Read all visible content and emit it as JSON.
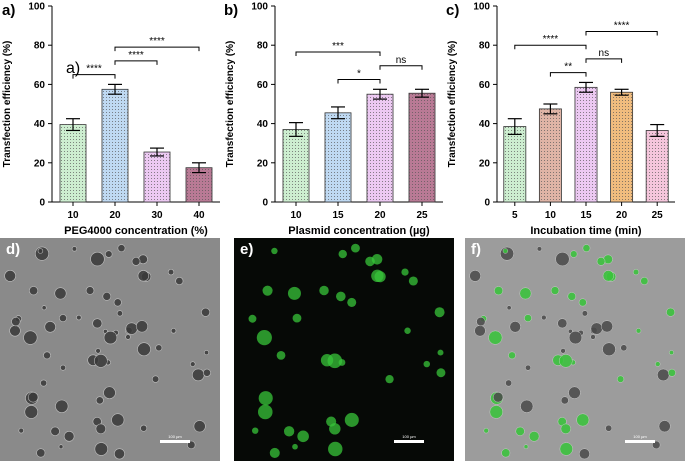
{
  "chart_data": [
    {
      "type": "bar",
      "panel_label": "a)",
      "inset_label": "a)",
      "title": "",
      "xlabel": "PEG4000 concentration (%)",
      "ylabel": "Transfection efficiency (%)",
      "ylim": [
        0,
        100
      ],
      "yticks": [
        "0",
        "20",
        "40",
        "60",
        "80",
        "100"
      ],
      "categories": [
        "10",
        "20",
        "30",
        "40"
      ],
      "values": [
        39.5,
        57.5,
        25.5,
        17.5
      ],
      "errors": [
        3,
        2.5,
        2,
        2.5
      ],
      "colors": [
        "#cdeed0",
        "#bfd9f2",
        "#ecc9f2",
        "#b97a95"
      ],
      "brackets": [
        {
          "from": 0,
          "to": 1,
          "label": "****"
        },
        {
          "from": 1,
          "to": 2,
          "label": "****"
        },
        {
          "from": 1,
          "to": 3,
          "label": "****"
        }
      ]
    },
    {
      "type": "bar",
      "panel_label": "b)",
      "title": "",
      "xlabel": "Plasmid concentration (µg)",
      "ylabel": "Transfection efficiency (%)",
      "ylim": [
        0,
        100
      ],
      "yticks": [
        "0",
        "20",
        "40",
        "60",
        "80",
        "100"
      ],
      "categories": [
        "10",
        "15",
        "20",
        "25"
      ],
      "values": [
        37,
        45.5,
        55,
        55.5
      ],
      "errors": [
        3.5,
        3,
        2.5,
        2
      ],
      "colors": [
        "#cdeed0",
        "#bfd9f2",
        "#ecc9f2",
        "#b97a95"
      ],
      "brackets": [
        {
          "from": 0,
          "to": 2,
          "label": "***"
        },
        {
          "from": 1,
          "to": 2,
          "label": "*"
        },
        {
          "from": 2,
          "to": 3,
          "label": "ns"
        }
      ]
    },
    {
      "type": "bar",
      "panel_label": "c)",
      "title": "",
      "xlabel": "Incubation time (min)",
      "ylabel": "Transfection efficiency (%)",
      "ylim": [
        0,
        100
      ],
      "yticks": [
        "0",
        "20",
        "40",
        "60",
        "80",
        "100"
      ],
      "categories": [
        "5",
        "10",
        "15",
        "20",
        "25"
      ],
      "values": [
        38.5,
        47.5,
        58.5,
        56,
        36.5
      ],
      "errors": [
        4,
        2.5,
        2.5,
        1.5,
        3
      ],
      "colors": [
        "#cdeed0",
        "#dfb4a6",
        "#ecc9f2",
        "#f0bc7e",
        "#f5c6dc"
      ],
      "brackets": [
        {
          "from": 0,
          "to": 2,
          "label": "****"
        },
        {
          "from": 1,
          "to": 2,
          "label": "**"
        },
        {
          "from": 2,
          "to": 3,
          "label": "ns"
        },
        {
          "from": 2,
          "to": 4,
          "label": "****"
        }
      ]
    }
  ],
  "micrographs": [
    {
      "panel_label": "d)",
      "mode": "brightfield",
      "scale_bar": "100 µm"
    },
    {
      "panel_label": "e)",
      "mode": "fluorescence",
      "scale_bar": "100 µm"
    },
    {
      "panel_label": "f)",
      "mode": "merged",
      "scale_bar": "100 µm"
    }
  ],
  "colors": {
    "bar_edge": "#333333",
    "bright_bg": "#8a8a8a",
    "fluor_bg": "#060906",
    "merge_bg": "#9c9c9c",
    "gfp": "#38c43a"
  }
}
